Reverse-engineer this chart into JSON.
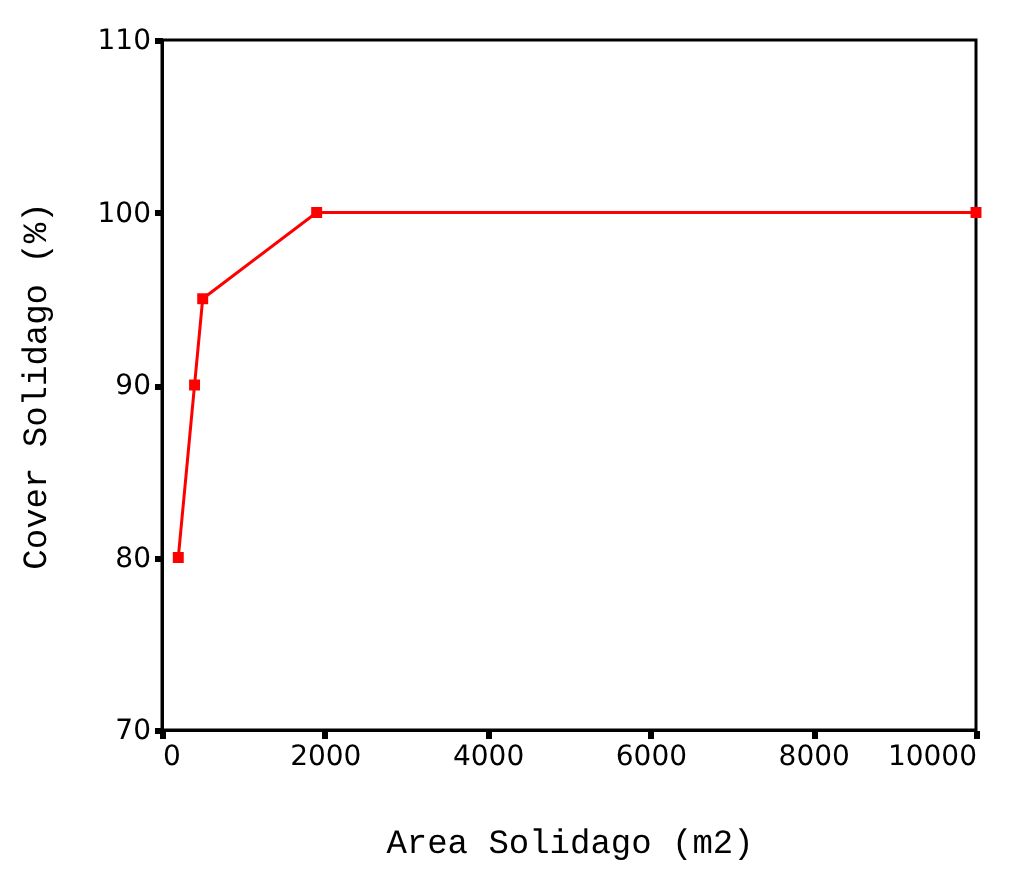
{
  "chart_data": {
    "type": "line",
    "xlabel": "Area Solidago (m2)",
    "ylabel": "Cover Solidago (%)",
    "x": [
      200,
      400,
      500,
      1900,
      10000
    ],
    "series": [
      {
        "color": "#ff0000",
        "values": [
          80,
          90,
          95,
          100,
          100
        ]
      }
    ],
    "xlim": [
      0,
      10000
    ],
    "xticks": [
      0,
      2000,
      4000,
      6000,
      8000,
      10000
    ],
    "ylim": [
      70,
      110
    ],
    "yticks": [
      70,
      80,
      90,
      100,
      110
    ],
    "marker": "square",
    "line_style": "solid",
    "grid": false
  }
}
